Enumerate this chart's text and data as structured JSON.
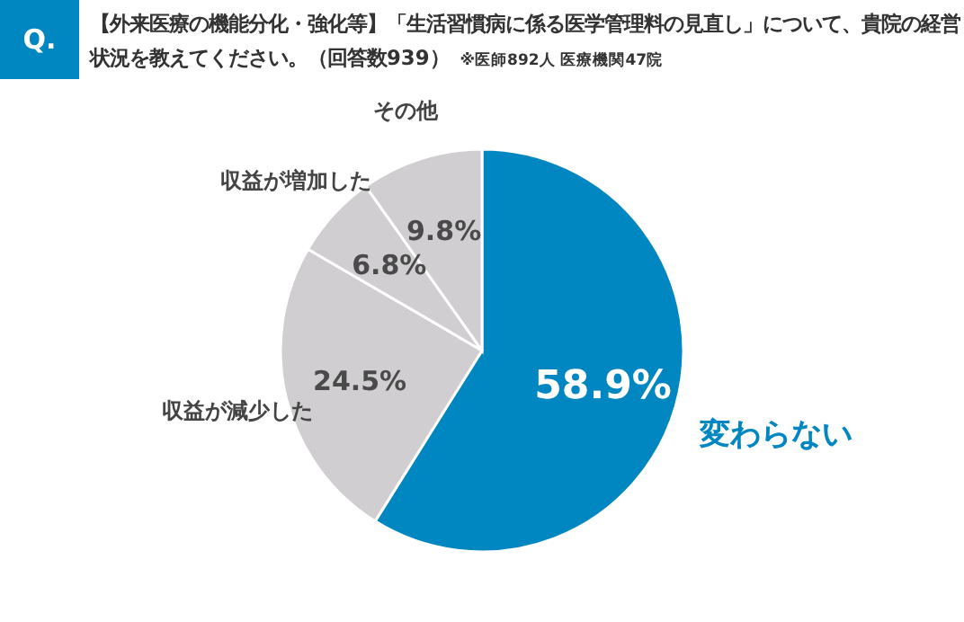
{
  "chart_data": {
    "type": "pie",
    "title": "【外来医療の機能分化・強化等】「生活習慣病に係る医学管理料の見直し」について、貴院の経営状況を教えてください。（回答数939）",
    "annotations": [
      "Q.",
      "※医師892人 医療機関47院"
    ],
    "categories": [
      "変わらない",
      "収益が減少した",
      "収益が増加した",
      "その他"
    ],
    "values": [
      58.9,
      24.5,
      6.8,
      9.8
    ],
    "colors": [
      "#0086c0",
      "#d0ced0",
      "#d0ced0",
      "#d0ced0"
    ],
    "value_labels": [
      "58.9%",
      "24.5%",
      "6.8%",
      "9.8%"
    ]
  }
}
